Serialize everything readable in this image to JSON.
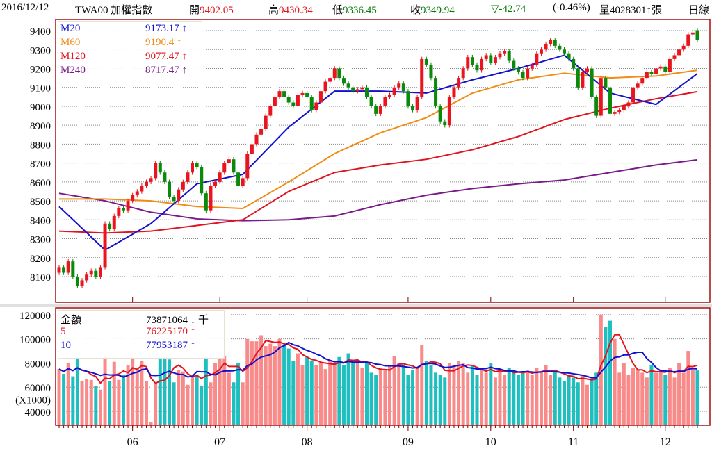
{
  "header": {
    "date": "2016/12/12",
    "symbol": "TWA00 加權指數",
    "open_label": "開",
    "open": "9402.05",
    "high_label": "高",
    "high": "9430.34",
    "low_label": "低",
    "low": "9336.45",
    "close_label": "收",
    "close": "9349.94",
    "change": "▽-42.74",
    "change_pct": "(-0.46%)",
    "volume_label": "量",
    "volume": "4028301↑張",
    "period": "日線"
  },
  "price_legend": [
    {
      "name": "M20",
      "value": "9173.17 ↑",
      "color": "#1010d0"
    },
    {
      "name": "M60",
      "value": "9190.4 ↑",
      "color": "#f08c14"
    },
    {
      "name": "M120",
      "value": "9077.47 ↑",
      "color": "#e0141e"
    },
    {
      "name": "M240",
      "value": "8717.47 ↑",
      "color": "#7a1a8a"
    }
  ],
  "volume_legend": [
    {
      "name": "金額",
      "value": "73871064 ↓ 千",
      "color": "#000000"
    },
    {
      "name": "5",
      "value": "76225170 ↑",
      "color": "#e0141e"
    },
    {
      "name": "10",
      "value": "77953187 ↑",
      "color": "#1010d0"
    }
  ],
  "chart_data": [
    {
      "type": "candlestick",
      "title": "TWA00 加權指數 日線",
      "ylim": [
        7964,
        9459
      ],
      "yticks": [
        "9400",
        "9300",
        "9200",
        "9100",
        "9000",
        "8900",
        "8800",
        "8700",
        "8600",
        "8500",
        "8400",
        "8300",
        "8200",
        "8100"
      ],
      "months": [
        {
          "label": "06",
          "day": 16
        },
        {
          "label": "07",
          "day": 35
        },
        {
          "label": "08",
          "day": 54
        },
        {
          "label": "09",
          "day": 76
        },
        {
          "label": "10",
          "day": 94
        },
        {
          "label": "11",
          "day": 112
        },
        {
          "label": "12",
          "day": 132
        }
      ],
      "close": [
        8150,
        8120,
        8180,
        8100,
        8050,
        8080,
        8110,
        8130,
        8100,
        8150,
        8380,
        8350,
        8420,
        8460,
        8450,
        8500,
        8530,
        8550,
        8580,
        8600,
        8620,
        8700,
        8650,
        8600,
        8520,
        8500,
        8560,
        8600,
        8650,
        8700,
        8680,
        8540,
        8450,
        8580,
        8600,
        8650,
        8700,
        8720,
        8650,
        8580,
        8620,
        8750,
        8800,
        8850,
        8880,
        8950,
        9000,
        9050,
        9080,
        9050,
        9020,
        9000,
        9060,
        9070,
        9050,
        8980,
        9020,
        9080,
        9130,
        9150,
        9200,
        9150,
        9120,
        9100,
        9080,
        9090,
        9100,
        9050,
        9000,
        8960,
        9000,
        9050,
        9060,
        9100,
        9120,
        9080,
        9000,
        8980,
        9050,
        9250,
        9220,
        9150,
        9000,
        8920,
        8900,
        9050,
        9100,
        9150,
        9200,
        9260,
        9220,
        9190,
        9250,
        9270,
        9230,
        9260,
        9280,
        9290,
        9240,
        9200,
        9180,
        9150,
        9200,
        9220,
        9280,
        9300,
        9330,
        9350,
        9320,
        9300,
        9280,
        9250,
        9200,
        9100,
        9180,
        9200,
        9050,
        8950,
        9150,
        9100,
        8960,
        8970,
        8980,
        9000,
        9020,
        9100,
        9120,
        9150,
        9180,
        9170,
        9200,
        9210,
        9180,
        9250,
        9270,
        9300,
        9320,
        9380,
        9390,
        9349.94
      ],
      "open": [
        8120,
        8150,
        8120,
        8180,
        8100,
        8050,
        8080,
        8110,
        8130,
        8100,
        8150,
        8380,
        8350,
        8420,
        8460,
        8450,
        8500,
        8530,
        8550,
        8580,
        8600,
        8620,
        8700,
        8650,
        8600,
        8520,
        8500,
        8560,
        8600,
        8650,
        8700,
        8680,
        8540,
        8450,
        8580,
        8600,
        8650,
        8700,
        8720,
        8650,
        8580,
        8620,
        8750,
        8800,
        8850,
        8880,
        8950,
        9000,
        9050,
        9080,
        9050,
        9020,
        9000,
        9060,
        9070,
        9050,
        8980,
        9020,
        9080,
        9130,
        9150,
        9200,
        9150,
        9120,
        9100,
        9080,
        9090,
        9100,
        9050,
        9000,
        8960,
        9000,
        9050,
        9060,
        9100,
        9120,
        9080,
        9000,
        8980,
        9050,
        9250,
        9220,
        9150,
        9000,
        8920,
        8900,
        9050,
        9100,
        9150,
        9200,
        9260,
        9220,
        9190,
        9250,
        9270,
        9230,
        9260,
        9280,
        9290,
        9240,
        9200,
        9180,
        9150,
        9200,
        9220,
        9280,
        9300,
        9330,
        9350,
        9320,
        9300,
        9280,
        9250,
        9200,
        9100,
        9180,
        9200,
        9050,
        8950,
        9150,
        9100,
        8960,
        8970,
        8980,
        9000,
        9020,
        9100,
        9120,
        9150,
        9180,
        9170,
        9200,
        9210,
        9180,
        9250,
        9270,
        9300,
        9320,
        9380,
        9402.05
      ],
      "ma": [
        {
          "name": "M20",
          "color": "#1010d0",
          "values": [
            8470,
            8240,
            8380,
            8590,
            8640,
            8890,
            9080,
            9080,
            9070,
            9140,
            9200,
            9270,
            9070,
            9010,
            9173.17
          ]
        },
        {
          "name": "M60",
          "color": "#f08c14",
          "values": [
            8510,
            8510,
            8500,
            8470,
            8460,
            8600,
            8750,
            8860,
            8940,
            9070,
            9140,
            9175,
            9150,
            9160,
            9190.4
          ]
        },
        {
          "name": "M120",
          "color": "#e0141e",
          "values": [
            8340,
            8330,
            8340,
            8370,
            8400,
            8550,
            8650,
            8690,
            8720,
            8770,
            8840,
            8930,
            8990,
            9040,
            9077.47
          ]
        },
        {
          "name": "M240",
          "color": "#7a1a8a",
          "values": [
            8540,
            8500,
            8440,
            8405,
            8395,
            8400,
            8420,
            8480,
            8530,
            8565,
            8590,
            8610,
            8650,
            8690,
            8717.47
          ]
        }
      ],
      "ma_sample_days": [
        0,
        10,
        20,
        30,
        40,
        50,
        60,
        70,
        80,
        90,
        100,
        110,
        120,
        130,
        139
      ]
    },
    {
      "type": "bar",
      "title": "金額",
      "ylabel": "(X1000)",
      "ylim": [
        28500,
        125700
      ],
      "yticks": [
        "120000",
        "100000",
        "80000",
        "60000",
        "40000"
      ],
      "values": [
        75000,
        71000,
        80000,
        69000,
        85000,
        65000,
        67000,
        66000,
        61000,
        58000,
        85000,
        65000,
        81000,
        66000,
        70000,
        78000,
        85000,
        75000,
        82000,
        65000,
        31000,
        63000,
        85000,
        85000,
        83000,
        64000,
        74000,
        73000,
        62000,
        70000,
        70000,
        61000,
        85000,
        64000,
        80000,
        84000,
        86000,
        72000,
        64000,
        80000,
        64000,
        100000,
        98000,
        98000,
        103000,
        94000,
        96000,
        94000,
        100000,
        95000,
        92000,
        82000,
        88000,
        78000,
        85000,
        82000,
        78000,
        80000,
        75000,
        82000,
        80000,
        85000,
        78000,
        88000,
        80000,
        82000,
        76000,
        80000,
        72000,
        70000,
        76000,
        75000,
        78000,
        86000,
        80000,
        78000,
        70000,
        74000,
        76000,
        95000,
        82000,
        78000,
        72000,
        70000,
        68000,
        80000,
        78000,
        82000,
        80000,
        72000,
        78000,
        70000,
        74000,
        72000,
        80000,
        68000,
        74000,
        70000,
        76000,
        72000,
        70000,
        72000,
        74000,
        70000,
        76000,
        72000,
        78000,
        70000,
        74000,
        68000,
        65000,
        70000,
        68000,
        64000,
        70000,
        62000,
        66000,
        72000,
        120000,
        110000,
        115000,
        100000,
        72000,
        80000,
        70000,
        76000,
        74000,
        72000,
        68000,
        78000,
        72000,
        74000,
        70000,
        76000,
        68000,
        80000,
        72000,
        90000,
        75000,
        73871
      ],
      "series": [
        {
          "name": "5",
          "period": 5,
          "color": "#e0141e"
        },
        {
          "name": "10",
          "period": 10,
          "color": "#1010d0"
        }
      ],
      "up_color": "#f88a8a",
      "down_color": "#1fbfbf"
    }
  ]
}
